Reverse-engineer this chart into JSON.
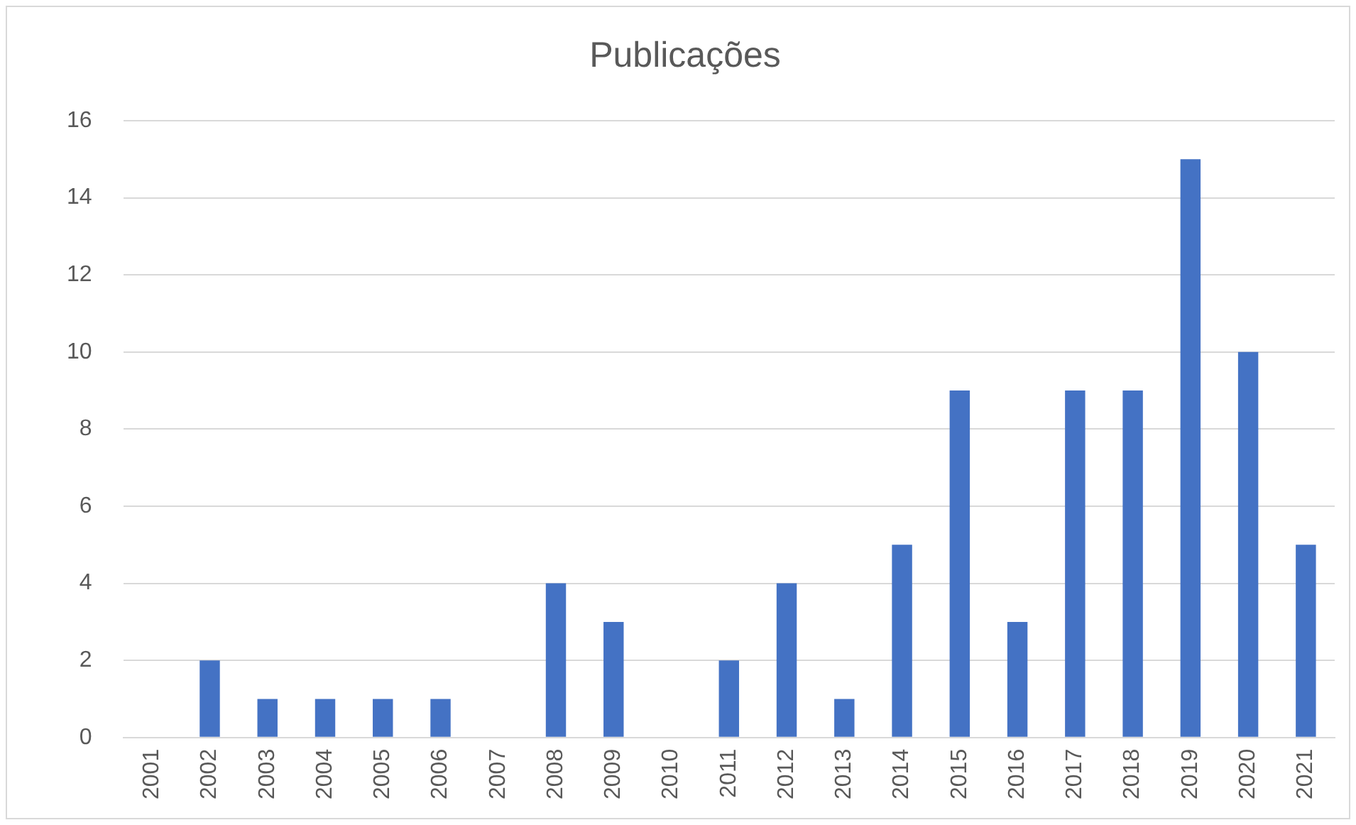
{
  "chart_data": {
    "type": "bar",
    "title": "Publicações",
    "categories": [
      "2001",
      "2002",
      "2003",
      "2004",
      "2005",
      "2006",
      "2007",
      "2008",
      "2009",
      "2010",
      "2011",
      "2012",
      "2013",
      "2014",
      "2015",
      "2016",
      "2017",
      "2018",
      "2019",
      "2020",
      "2021"
    ],
    "values": [
      0,
      2,
      1,
      1,
      1,
      1,
      0,
      4,
      3,
      0,
      2,
      4,
      1,
      5,
      9,
      3,
      9,
      9,
      15,
      10,
      5
    ],
    "color": "#4472c4",
    "ylim": [
      0,
      16
    ],
    "yticks": [
      0,
      2,
      4,
      6,
      8,
      10,
      12,
      14,
      16
    ],
    "grid": "y"
  }
}
